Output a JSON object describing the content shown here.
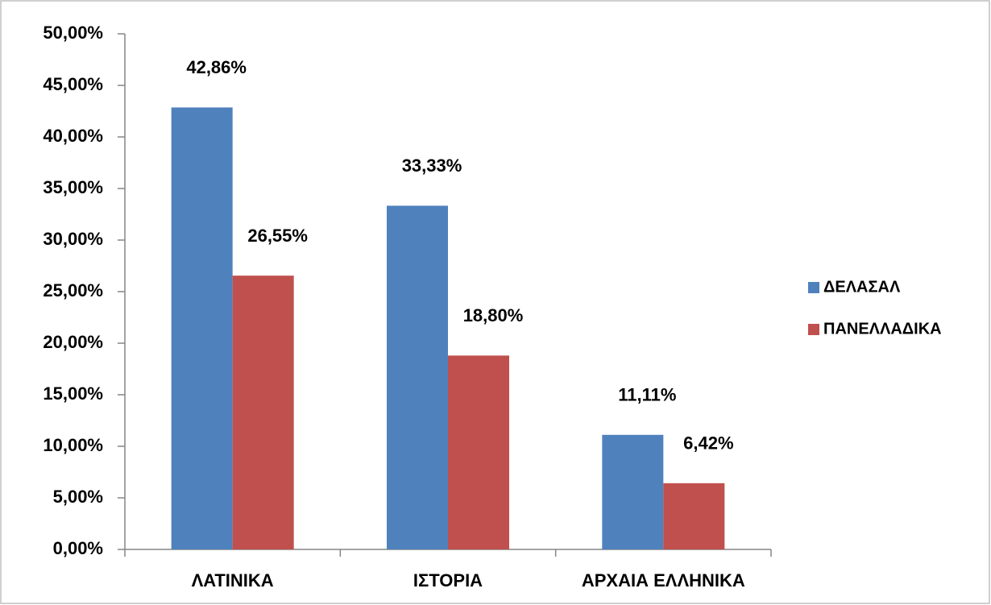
{
  "chart_data": {
    "type": "bar",
    "categories": [
      "ΛΑΤΙΝΙΚΑ",
      "ΙΣΤΟΡΙΑ",
      "ΑΡΧΑΙΑ ΕΛΛΗΝΙΚΑ"
    ],
    "series": [
      {
        "name": "ΔΕΛΑΣΑΛ",
        "color": "#4f81bd",
        "values": [
          42.86,
          33.33,
          11.11
        ],
        "value_labels": [
          "42,86%",
          "33,33%",
          "11,11%"
        ]
      },
      {
        "name": "ΠΑΝΕΛΛΑΔΙΚΑ",
        "color": "#c0504d",
        "values": [
          26.55,
          18.8,
          6.42
        ],
        "value_labels": [
          "26,55%",
          "18,80%",
          "6,42%"
        ]
      }
    ],
    "ylim": [
      0,
      50
    ],
    "yticks": [
      {
        "value": 0,
        "label": "0,00%"
      },
      {
        "value": 5,
        "label": "5,00%"
      },
      {
        "value": 10,
        "label": "10,00%"
      },
      {
        "value": 15,
        "label": "15,00%"
      },
      {
        "value": 20,
        "label": "20,00%"
      },
      {
        "value": 25,
        "label": "25,00%"
      },
      {
        "value": 30,
        "label": "30,00%"
      },
      {
        "value": 35,
        "label": "35,00%"
      },
      {
        "value": 40,
        "label": "40,00%"
      },
      {
        "value": 45,
        "label": "45,00%"
      },
      {
        "value": 50,
        "label": "50,00%"
      }
    ],
    "grid": false,
    "legend": "right"
  }
}
